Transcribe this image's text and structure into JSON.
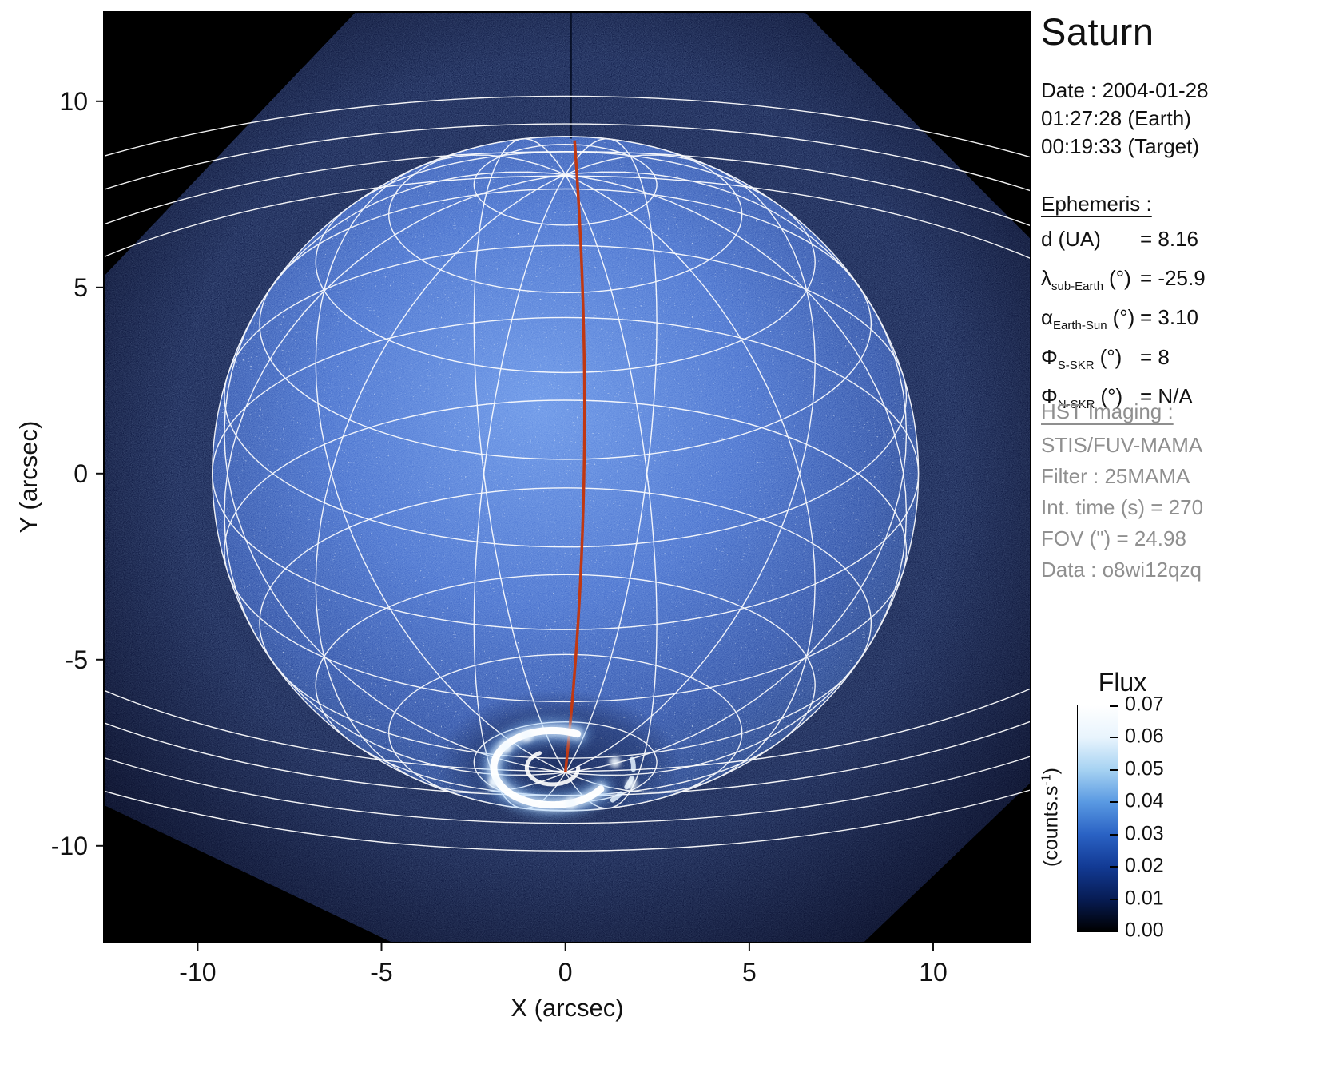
{
  "title": "Saturn",
  "observation": {
    "date": "Date : 2004-01-28",
    "time_earth": "01:27:28 (Earth)",
    "time_target": "00:19:33 (Target)"
  },
  "ephemeris": {
    "heading": "Ephemeris :",
    "rows": [
      {
        "symbol": "d",
        "subscript": "",
        "unit": "(UA)",
        "value": "= 8.16"
      },
      {
        "symbol": "λ",
        "subscript": "sub-Earth",
        "unit": "(°)",
        "value": "= -25.9"
      },
      {
        "symbol": "α",
        "subscript": "Earth-Sun",
        "unit": "(°)",
        "value": "= 3.10"
      },
      {
        "symbol": "Φ",
        "subscript": "S-SKR",
        "unit": "(°)",
        "value": "= 8"
      },
      {
        "symbol": "Φ",
        "subscript": "N-SKR",
        "unit": "(°)",
        "value": "= N/A"
      }
    ]
  },
  "hst_imaging": {
    "heading": "HST Imaging :",
    "lines": [
      "STIS/FUV-MAMA",
      "Filter : 25MAMA",
      "Int. time (s) = 270",
      "FOV (\") = 24.98",
      "Data : o8wi12qzq"
    ]
  },
  "colorbar": {
    "title": "Flux",
    "unit_prefix": "(counts.s",
    "unit_sup": "-1",
    "unit_suffix": ")",
    "tick_labels": [
      "0.07",
      "0.06",
      "0.05",
      "0.04",
      "0.03",
      "0.02",
      "0.01",
      "0.00"
    ],
    "gradient_stops": [
      "#ffffff",
      "#e8f4fd",
      "#a6d2f2",
      "#5999e2",
      "#2a62c4",
      "#123a94",
      "#071c54",
      "#000000"
    ]
  },
  "chart_data": {
    "type": "heatmap",
    "title": "Saturn",
    "xlabel": "X (arcsec)",
    "ylabel": "Y (arcsec)",
    "xlim": [
      -12.55,
      12.65
    ],
    "ylim": [
      -12.6,
      12.4
    ],
    "xticks": [
      -10,
      -5,
      0,
      5,
      10
    ],
    "yticks": [
      10,
      5,
      0,
      -5,
      -10
    ],
    "flux_min": 0.0,
    "flux_max": 0.07,
    "flux_unit": "counts.s-1",
    "colormap": "black-blue-white",
    "description": "HST STIS/FUV-MAMA ultraviolet image of Saturn with planetocentric lat/lon wireframe grid, ring ellipses, red central meridian and bright southern auroral oval near the south pole",
    "projection": {
      "sub_earth_lat_deg": -25.9,
      "planet_radius_arcsec": 9.6,
      "polar_flattening": 0.93
    },
    "grid": {
      "latitude_step_deg": 15,
      "longitude_step_deg": 30
    },
    "rings_semimajor_arcsec": [
      18.3,
      19.8,
      21.5,
      23.2
    ],
    "ring_axis_ratio": 0.437,
    "fov_polygon": [
      [
        -5.7,
        12.4
      ],
      [
        6.5,
        12.4
      ],
      [
        12.65,
        6.3
      ],
      [
        12.65,
        -8.3
      ],
      [
        8.1,
        -12.6
      ],
      [
        -4.7,
        -12.6
      ],
      [
        -12.55,
        -8.9
      ],
      [
        -12.55,
        5.3
      ]
    ],
    "central_meridian": {
      "color": "#c03812",
      "top": [
        0.25,
        8.95
      ],
      "control": [
        0.9,
        0.2
      ],
      "pole": [
        0.0,
        -8.03
      ]
    },
    "aurora": {
      "center": [
        -0.35,
        -7.9
      ],
      "main_arc": {
        "rx": 1.6,
        "ry": 1.0,
        "start_deg": 65,
        "end_deg": 325
      },
      "inner_arc": {
        "rx": 0.7,
        "ry": 0.45,
        "start_deg": 120,
        "end_deg": 360
      },
      "east_arc": {
        "rx": 2.2,
        "ry": 1.3,
        "start_deg": 10,
        "end_deg": -45
      },
      "blobs": [
        [
          -1.62,
          -7.35
        ],
        [
          -1.05,
          -7.05
        ],
        [
          -1.95,
          -8.3
        ],
        [
          0.15,
          -8.85
        ],
        [
          1.35,
          -7.75
        ],
        [
          1.8,
          -8.35
        ]
      ]
    },
    "colors": {
      "grid": "#ffffff",
      "background": "#000000",
      "fov": "#0c1845",
      "disk_core": "#6490e4",
      "disk_edge": "#16306f"
    }
  }
}
